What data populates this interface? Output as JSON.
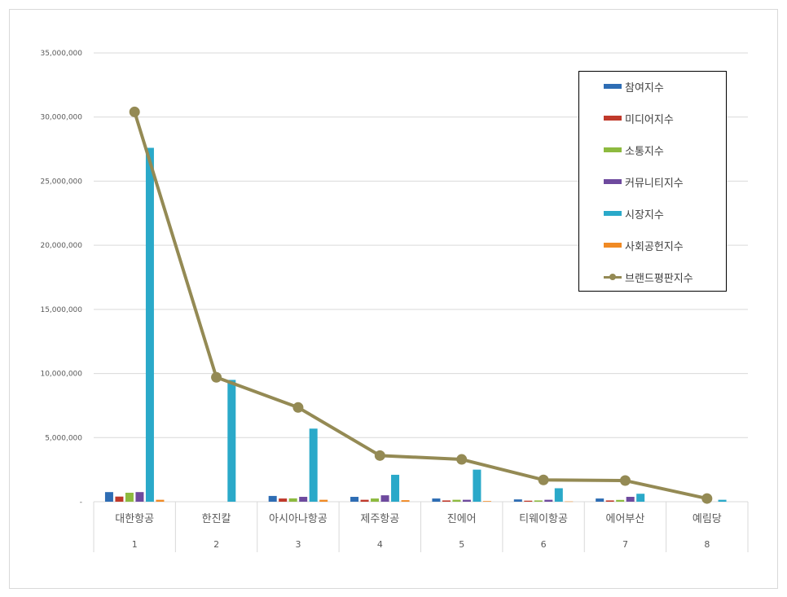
{
  "chart_data": {
    "type": "bar",
    "title": "",
    "xlabel": "",
    "ylabel": "",
    "ylim": [
      0,
      35000000
    ],
    "yticks": [
      "-",
      "5,000,000",
      "10,000,000",
      "15,000,000",
      "20,000,000",
      "25,000,000",
      "30,000,000",
      "35,000,000"
    ],
    "ytick_values": [
      0,
      5000000,
      10000000,
      15000000,
      20000000,
      25000000,
      30000000,
      35000000
    ],
    "grid": true,
    "legend_position": "top-right",
    "categories": [
      "대한항공",
      "한진칼",
      "아시아나항공",
      "제주항공",
      "진에어",
      "티웨이항공",
      "에어부산",
      "예림당"
    ],
    "ranks": [
      "1",
      "2",
      "3",
      "4",
      "5",
      "6",
      "7",
      "8"
    ],
    "series": [
      {
        "name": "참여지수",
        "kind": "bar",
        "color": "#2E6DB4",
        "values": [
          750000,
          0,
          450000,
          380000,
          250000,
          180000,
          250000,
          0
        ]
      },
      {
        "name": "미디어지수",
        "kind": "bar",
        "color": "#C0392B",
        "values": [
          400000,
          0,
          250000,
          150000,
          100000,
          80000,
          100000,
          0
        ]
      },
      {
        "name": "소통지수",
        "kind": "bar",
        "color": "#8DBA3F",
        "values": [
          700000,
          0,
          260000,
          250000,
          150000,
          100000,
          140000,
          0
        ]
      },
      {
        "name": "커뮤니티지수",
        "kind": "bar",
        "color": "#6E4A9E",
        "values": [
          750000,
          0,
          380000,
          500000,
          150000,
          150000,
          380000,
          0
        ]
      },
      {
        "name": "시장지수",
        "kind": "bar",
        "color": "#2AA9C9",
        "values": [
          27600000,
          9500000,
          5700000,
          2100000,
          2500000,
          1050000,
          620000,
          150000
        ]
      },
      {
        "name": "사회공헌지수",
        "kind": "bar",
        "color": "#F08A24",
        "values": [
          150000,
          0,
          150000,
          120000,
          50000,
          20000,
          0,
          0
        ]
      },
      {
        "name": "브랜드평판지수",
        "kind": "line",
        "color": "#948A54",
        "values": [
          30400000,
          9700000,
          7350000,
          3600000,
          3300000,
          1700000,
          1650000,
          250000
        ]
      }
    ]
  }
}
